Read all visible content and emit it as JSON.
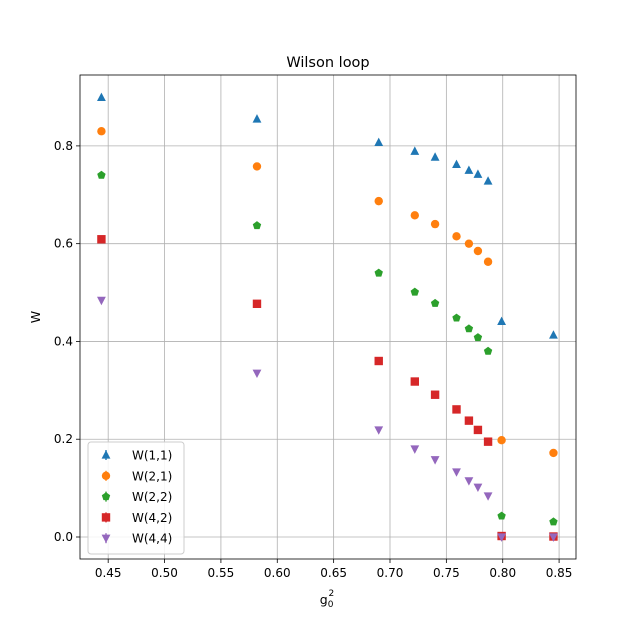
{
  "chart_data": {
    "type": "scatter",
    "title": "Wilson loop",
    "xlabel_base": "g",
    "xlabel_sub": "0",
    "xlabel_sup": "2",
    "ylabel": "W",
    "xlim": [
      0.425,
      0.865
    ],
    "ylim": [
      -0.045,
      0.945
    ],
    "xticks": [
      0.45,
      0.5,
      0.55,
      0.6,
      0.65,
      0.7,
      0.75,
      0.8,
      0.85
    ],
    "xtick_labels": [
      "0.45",
      "0.50",
      "0.55",
      "0.60",
      "0.65",
      "0.70",
      "0.75",
      "0.80",
      "0.85"
    ],
    "yticks": [
      0.0,
      0.2,
      0.4,
      0.6,
      0.8
    ],
    "ytick_labels": [
      "0.0",
      "0.2",
      "0.4",
      "0.6",
      "0.8"
    ],
    "grid": true,
    "legend_position": "lower-left",
    "x": [
      0.444,
      0.582,
      0.69,
      0.722,
      0.74,
      0.759,
      0.77,
      0.778,
      0.787,
      0.799,
      0.845
    ],
    "series": [
      {
        "name": "W(1,1)",
        "marker": "triangle-up",
        "color": "#1f77b4",
        "points": [
          [
            0.444,
            0.899
          ],
          [
            0.582,
            0.855
          ],
          [
            0.69,
            0.807
          ],
          [
            0.722,
            0.789
          ],
          [
            0.74,
            0.777
          ],
          [
            0.759,
            0.762
          ],
          [
            0.77,
            0.75
          ],
          [
            0.778,
            0.742
          ],
          [
            0.787,
            0.728
          ],
          [
            0.799,
            0.441
          ],
          [
            0.845,
            0.413
          ]
        ]
      },
      {
        "name": "W(2,1)",
        "marker": "circle",
        "color": "#ff7f0e",
        "points": [
          [
            0.444,
            0.83
          ],
          [
            0.582,
            0.758
          ],
          [
            0.69,
            0.687
          ],
          [
            0.722,
            0.658
          ],
          [
            0.74,
            0.64
          ],
          [
            0.759,
            0.615
          ],
          [
            0.77,
            0.6
          ],
          [
            0.778,
            0.585
          ],
          [
            0.787,
            0.563
          ],
          [
            0.799,
            0.198
          ],
          [
            0.845,
            0.172
          ]
        ]
      },
      {
        "name": "W(2,2)",
        "marker": "pentagon",
        "color": "#2ca02c",
        "points": [
          [
            0.444,
            0.74
          ],
          [
            0.582,
            0.637
          ],
          [
            0.69,
            0.54
          ],
          [
            0.722,
            0.501
          ],
          [
            0.74,
            0.478
          ],
          [
            0.759,
            0.448
          ],
          [
            0.77,
            0.426
          ],
          [
            0.778,
            0.408
          ],
          [
            0.787,
            0.38
          ],
          [
            0.799,
            0.043
          ],
          [
            0.845,
            0.031
          ]
        ]
      },
      {
        "name": "W(4,2)",
        "marker": "square",
        "color": "#d62728",
        "points": [
          [
            0.444,
            0.609
          ],
          [
            0.582,
            0.477
          ],
          [
            0.69,
            0.36
          ],
          [
            0.722,
            0.318
          ],
          [
            0.74,
            0.291
          ],
          [
            0.759,
            0.261
          ],
          [
            0.77,
            0.238
          ],
          [
            0.778,
            0.219
          ],
          [
            0.787,
            0.195
          ],
          [
            0.799,
            0.002
          ],
          [
            0.845,
            0.001
          ]
        ]
      },
      {
        "name": "W(4,4)",
        "marker": "triangle-down",
        "color": "#9467bd",
        "points": [
          [
            0.444,
            0.484
          ],
          [
            0.582,
            0.335
          ],
          [
            0.69,
            0.219
          ],
          [
            0.722,
            0.18
          ],
          [
            0.74,
            0.158
          ],
          [
            0.759,
            0.133
          ],
          [
            0.77,
            0.115
          ],
          [
            0.778,
            0.102
          ],
          [
            0.787,
            0.084
          ],
          [
            0.799,
            0.0
          ],
          [
            0.845,
            0.0
          ]
        ]
      }
    ]
  }
}
